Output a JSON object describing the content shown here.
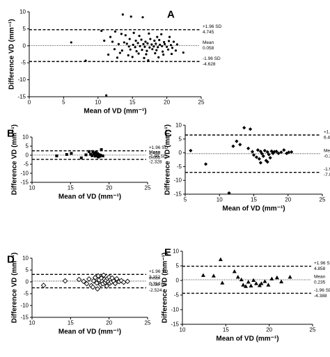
{
  "chart_data": [
    {
      "panel": "A",
      "type": "scatter",
      "marker": "circle",
      "xlabel": "Mean of VD (mm⁻¹)",
      "ylabel": "Difference VD (mm⁻¹)",
      "xlim": [
        0,
        25
      ],
      "ylim": [
        -15,
        10
      ],
      "xticks": [
        0,
        5,
        10,
        15,
        20,
        25
      ],
      "yticks": [
        -15,
        -10,
        -5,
        0,
        5,
        10
      ],
      "xtick_labels": [
        "0",
        "5",
        "10",
        "15",
        "20",
        "25"
      ],
      "ytick_labels": [
        "-15",
        "-10",
        "-5",
        "0",
        "5",
        "10"
      ],
      "lines": {
        "upper": 4.745,
        "mean": 0.058,
        "lower": -4.628
      },
      "annotations": {
        "upper_label": "+1.96 SD",
        "upper_value": "4.745",
        "mean_label": "Mean",
        "mean_value": "0.058",
        "lower_label": "-1.96 SD",
        "lower_value": "-4.628"
      },
      "points": [
        [
          13.6,
          9.2
        ],
        [
          14.8,
          8.6
        ],
        [
          16.5,
          8.4
        ],
        [
          6.1,
          1.0
        ],
        [
          10.5,
          4.4
        ],
        [
          11.8,
          2.6
        ],
        [
          12.5,
          4.2
        ],
        [
          13.4,
          3.5
        ],
        [
          14.0,
          3.1
        ],
        [
          15.2,
          3.8
        ],
        [
          16.0,
          2.9
        ],
        [
          17.4,
          3.6
        ],
        [
          18.6,
          2.6
        ],
        [
          19.2,
          3.4
        ],
        [
          20.4,
          2.6
        ],
        [
          10.9,
          1.5
        ],
        [
          12.1,
          1.2
        ],
        [
          13.8,
          1.0
        ],
        [
          14.6,
          2.0
        ],
        [
          15.5,
          1.5
        ],
        [
          16.3,
          1.8
        ],
        [
          16.9,
          1.2
        ],
        [
          17.6,
          2.0
        ],
        [
          18.2,
          1.5
        ],
        [
          18.9,
          1.7
        ],
        [
          19.6,
          1.1
        ],
        [
          20.3,
          1.4
        ],
        [
          21.0,
          1.2
        ],
        [
          13.0,
          0.5
        ],
        [
          14.2,
          0.6
        ],
        [
          15.1,
          0.3
        ],
        [
          15.8,
          0.8
        ],
        [
          16.6,
          0.5
        ],
        [
          17.2,
          0.7
        ],
        [
          17.8,
          0.4
        ],
        [
          18.4,
          0.6
        ],
        [
          19.0,
          0.3
        ],
        [
          19.7,
          0.5
        ],
        [
          20.6,
          0.2
        ],
        [
          21.5,
          0.4
        ],
        [
          14.5,
          -0.2
        ],
        [
          15.4,
          -0.4
        ],
        [
          16.1,
          -0.1
        ],
        [
          16.8,
          -0.3
        ],
        [
          17.5,
          -0.5
        ],
        [
          18.1,
          -0.2
        ],
        [
          18.7,
          -0.4
        ],
        [
          19.3,
          -0.1
        ],
        [
          20.0,
          -0.3
        ],
        [
          20.8,
          -0.6
        ],
        [
          12.4,
          -1.0
        ],
        [
          13.5,
          -1.4
        ],
        [
          14.7,
          -1.1
        ],
        [
          15.6,
          -1.6
        ],
        [
          16.4,
          -1.2
        ],
        [
          17.1,
          -1.5
        ],
        [
          17.9,
          -1.0
        ],
        [
          18.5,
          -1.3
        ],
        [
          19.4,
          -1.7
        ],
        [
          20.2,
          -1.1
        ],
        [
          21.3,
          -1.4
        ],
        [
          11.5,
          -2.6
        ],
        [
          13.2,
          -2.1
        ],
        [
          14.4,
          -2.8
        ],
        [
          15.9,
          -2.3
        ],
        [
          17.0,
          -2.5
        ],
        [
          18.3,
          -2.2
        ],
        [
          19.5,
          -2.6
        ],
        [
          20.7,
          -2.4
        ],
        [
          22.4,
          -2.0
        ],
        [
          12.8,
          -3.5
        ],
        [
          15.0,
          -3.3
        ],
        [
          16.7,
          -3.6
        ],
        [
          18.8,
          -3.4
        ],
        [
          8.2,
          -4.4
        ],
        [
          17.3,
          -4.3
        ],
        [
          11.2,
          -14.6
        ]
      ]
    },
    {
      "panel": "B",
      "type": "scatter",
      "marker": "square",
      "xlabel": "Mean of VD (mm⁻¹)",
      "ylabel": "Difference VD (mm⁻¹)",
      "xlim": [
        10,
        25
      ],
      "ylim": [
        -15,
        10
      ],
      "xticks": [
        10,
        15,
        20,
        25
      ],
      "yticks": [
        -15,
        -10,
        -5,
        0,
        5,
        10
      ],
      "xtick_labels": [
        "10",
        "15",
        "20",
        "25"
      ],
      "ytick_labels": [
        "-15",
        "-10",
        "-5",
        "0",
        "5",
        "10"
      ],
      "lines": {
        "upper": 2.438,
        "mean": 0.055,
        "lower": -2.328
      },
      "annotations": {
        "upper_label": "+1.96 SD",
        "upper_value": "2.438",
        "mean_label": "Mean",
        "mean_value": "0.055",
        "lower_label": "-1.96 SD",
        "lower_value": "-2.328"
      },
      "points": [
        [
          13.2,
          -0.4
        ],
        [
          14.5,
          0.4
        ],
        [
          15.1,
          1.0
        ],
        [
          16.4,
          -1.5
        ],
        [
          17.0,
          0.2
        ],
        [
          17.4,
          2.0
        ],
        [
          17.6,
          0.5
        ],
        [
          17.8,
          -0.3
        ],
        [
          17.9,
          2.0
        ],
        [
          18.0,
          1.0
        ],
        [
          18.1,
          0.6
        ],
        [
          18.2,
          -0.5
        ],
        [
          18.3,
          1.5
        ],
        [
          18.4,
          -0.2
        ],
        [
          18.5,
          0.9
        ],
        [
          18.6,
          -1.0
        ],
        [
          18.7,
          0.3
        ],
        [
          18.8,
          -0.6
        ],
        [
          18.9,
          0.0
        ],
        [
          19.0,
          3.1
        ],
        [
          19.2,
          -0.4
        ]
      ]
    },
    {
      "panel": "C",
      "type": "scatter",
      "marker": "diamond-filled",
      "xlabel": "Mean of VD (mm⁻¹)",
      "ylabel": "Difference VD (mm⁻¹)",
      "xlim": [
        5,
        25
      ],
      "ylim": [
        -15,
        10
      ],
      "xticks": [
        5,
        10,
        15,
        20,
        25
      ],
      "yticks": [
        -15,
        -10,
        -5,
        0,
        5,
        10
      ],
      "xtick_labels": [
        "5",
        "10",
        "15",
        "20",
        "25"
      ],
      "ytick_labels": [
        "-15",
        "-10",
        "-5",
        "0",
        "5",
        "10"
      ],
      "lines": {
        "upper": 6.465,
        "mean": -0.311,
        "lower": -7.087
      },
      "annotations": {
        "upper_label": "+1.96 SD",
        "upper_value": "6.465",
        "mean_label": "Mean",
        "mean_value": "-0.311",
        "lower_label": "-1.96 SD",
        "lower_value": "-7.087"
      },
      "points": [
        [
          5.8,
          0.8
        ],
        [
          8.0,
          -4.1
        ],
        [
          11.4,
          -14.6
        ],
        [
          12.0,
          2.4
        ],
        [
          12.5,
          4.2
        ],
        [
          13.0,
          3.0
        ],
        [
          13.6,
          9.1
        ],
        [
          14.5,
          8.6
        ],
        [
          14.2,
          1.6
        ],
        [
          14.8,
          0.4
        ],
        [
          15.0,
          -0.8
        ],
        [
          15.4,
          -1.6
        ],
        [
          15.6,
          1.0
        ],
        [
          15.8,
          -2.2
        ],
        [
          16.0,
          0.5
        ],
        [
          16.2,
          -0.3
        ],
        [
          16.4,
          -1.2
        ],
        [
          16.6,
          0.8
        ],
        [
          16.8,
          -2.8
        ],
        [
          17.0,
          0.3
        ],
        [
          17.2,
          -0.6
        ],
        [
          17.4,
          -1.8
        ],
        [
          17.6,
          0.6
        ],
        [
          17.8,
          -0.2
        ],
        [
          18.0,
          0.4
        ],
        [
          18.3,
          0.5
        ],
        [
          18.6,
          -0.2
        ],
        [
          19.0,
          0.2
        ],
        [
          19.4,
          1.0
        ],
        [
          19.8,
          -0.2
        ],
        [
          20.1,
          0.2
        ],
        [
          20.5,
          0.3
        ],
        [
          16.0,
          -3.6
        ],
        [
          17.0,
          -3.3
        ]
      ]
    },
    {
      "panel": "D",
      "type": "scatter",
      "marker": "diamond-open",
      "xlabel": "Mean of VD (mm⁻¹)",
      "ylabel": "Difference VD (mm⁻¹)",
      "xlim": [
        10,
        25
      ],
      "ylim": [
        -15,
        10
      ],
      "xticks": [
        10,
        15,
        20,
        25
      ],
      "yticks": [
        -15,
        -10,
        -5,
        0,
        5,
        10
      ],
      "xtick_labels": [
        "10",
        "15",
        "20",
        "25"
      ],
      "ytick_labels": [
        "-15",
        "-10",
        "-5",
        "0",
        "5",
        "10"
      ],
      "lines": {
        "upper": 3.152,
        "mean": 0.314,
        "lower": -2.524
      },
      "annotations": {
        "upper_label": "+1.96 SD",
        "upper_value": "3.152",
        "mean_label": "mean",
        "mean_value": "0.314",
        "lower_label": "-1.96 SD",
        "lower_value": "-2.524"
      },
      "points": [
        [
          11.5,
          -1.5
        ],
        [
          14.3,
          0.4
        ],
        [
          16.1,
          1.0
        ],
        [
          16.7,
          0.2
        ],
        [
          17.1,
          -0.8
        ],
        [
          17.4,
          1.2
        ],
        [
          17.7,
          -1.6
        ],
        [
          18.0,
          0.4
        ],
        [
          18.2,
          1.8
        ],
        [
          18.4,
          -0.5
        ],
        [
          18.6,
          2.5
        ],
        [
          18.7,
          0.8
        ],
        [
          18.9,
          -1.2
        ],
        [
          19.0,
          1.5
        ],
        [
          19.1,
          0.2
        ],
        [
          19.2,
          -0.8
        ],
        [
          19.3,
          2.8
        ],
        [
          19.4,
          1.1
        ],
        [
          19.5,
          -0.3
        ],
        [
          19.6,
          0.6
        ],
        [
          19.7,
          -1.8
        ],
        [
          19.8,
          1.4
        ],
        [
          19.9,
          0.0
        ],
        [
          20.0,
          2.0
        ],
        [
          20.1,
          -0.6
        ],
        [
          20.2,
          0.9
        ],
        [
          20.3,
          -0.1
        ],
        [
          20.4,
          1.6
        ],
        [
          20.6,
          0.3
        ],
        [
          20.8,
          -0.7
        ],
        [
          21.0,
          1.3
        ],
        [
          21.3,
          0.1
        ],
        [
          21.6,
          0.5
        ],
        [
          21.9,
          -0.2
        ],
        [
          22.4,
          0.2
        ],
        [
          17.9,
          -2.2
        ],
        [
          18.5,
          -3.0
        ]
      ]
    },
    {
      "panel": "E",
      "type": "scatter",
      "marker": "triangle",
      "xlabel": "Mean of VD (mm⁻¹)",
      "ylabel": "Difference VD (mm⁻¹)",
      "xlim": [
        10,
        25
      ],
      "ylim": [
        -15,
        10
      ],
      "xticks": [
        10,
        15,
        20,
        25
      ],
      "yticks": [
        -15,
        -10,
        -5,
        0,
        5,
        10
      ],
      "xtick_labels": [
        "10",
        "15",
        "20",
        "25"
      ],
      "ytick_labels": [
        "-15",
        "-10",
        "-5",
        "0",
        "5",
        "10"
      ],
      "lines": {
        "upper": 4.858,
        "mean": 0.235,
        "lower": -4.388
      },
      "annotations": {
        "upper_label": "+1.96 SD",
        "upper_value": "4.858",
        "mean_label": "Mean",
        "mean_value": "0.235",
        "lower_label": "-1.96 SD",
        "lower_value": "-4.388"
      },
      "points": [
        [
          12.4,
          1.8
        ],
        [
          13.6,
          1.6
        ],
        [
          14.4,
          7.2
        ],
        [
          14.6,
          -0.8
        ],
        [
          16.0,
          3.1
        ],
        [
          16.4,
          1.2
        ],
        [
          16.8,
          0.3
        ],
        [
          17.0,
          -1.5
        ],
        [
          17.3,
          -2.0
        ],
        [
          17.6,
          -0.5
        ],
        [
          17.9,
          -1.8
        ],
        [
          18.2,
          0.1
        ],
        [
          18.5,
          -1.0
        ],
        [
          18.9,
          -1.7
        ],
        [
          19.1,
          -1.0
        ],
        [
          19.5,
          -0.3
        ],
        [
          19.9,
          -1.5
        ],
        [
          20.3,
          0.6
        ],
        [
          20.9,
          1.0
        ],
        [
          21.4,
          -0.4
        ],
        [
          22.4,
          1.2
        ]
      ]
    }
  ],
  "panel_labels": {
    "A": "A",
    "B": "B",
    "C": "C",
    "D": "D",
    "E": "E"
  }
}
